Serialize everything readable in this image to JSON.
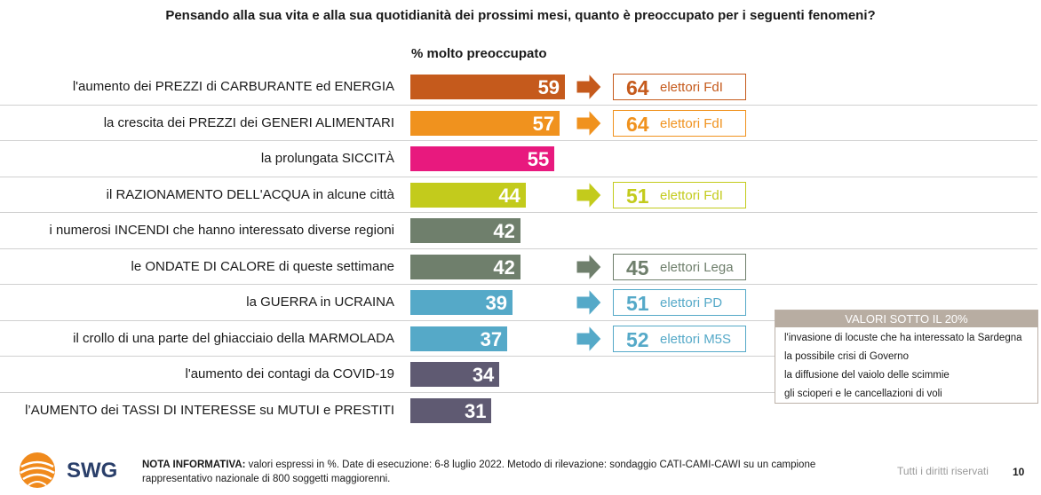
{
  "title": "Pensando alla sua vita e alla sua quotidianità dei prossimi mesi, quanto è preoccupato per i seguenti fenomeni?",
  "subtitle": "% molto preoccupato",
  "chart_data": {
    "type": "bar",
    "orientation": "horizontal",
    "categories": [
      "l'aumento dei PREZZI di CARBURANTE ed ENERGIA",
      "la crescita dei PREZZI dei GENERI ALIMENTARI",
      "la prolungata SICCITÀ",
      "il RAZIONAMENTO DELL'ACQUA in alcune città",
      "i numerosi INCENDI che hanno interessato diverse regioni",
      "le ONDATE DI CALORE di queste settimane",
      "la GUERRA in UCRAINA",
      "il crollo di una parte del ghiacciaio della MARMOLADA",
      "l'aumento dei contagi da COVID-19",
      "l’AUMENTO dei TASSI DI INTERESSE su MUTUI e PRESTITI"
    ],
    "values": [
      59,
      57,
      55,
      44,
      42,
      42,
      39,
      37,
      34,
      31
    ],
    "colors": [
      "#c55a1c",
      "#f0921e",
      "#e8197e",
      "#c3cb1c",
      "#6f7f6c",
      "#6f7f6c",
      "#55a9c8",
      "#55a9c8",
      "#5f5a72",
      "#5f5a72"
    ],
    "callouts": [
      {
        "index": 0,
        "value": 64,
        "label": "elettori FdI",
        "color": "#c55a1c"
      },
      {
        "index": 1,
        "value": 64,
        "label": "elettori FdI",
        "color": "#f0921e"
      },
      {
        "index": 3,
        "value": 51,
        "label": "elettori FdI",
        "color": "#c3cb1c"
      },
      {
        "index": 5,
        "value": 45,
        "label": "elettori Lega",
        "color": "#6f7f6c"
      },
      {
        "index": 6,
        "value": 51,
        "label": "elettori PD",
        "color": "#55a9c8"
      },
      {
        "index": 7,
        "value": 52,
        "label": "elettori M5S",
        "color": "#55a9c8"
      }
    ],
    "xlim": [
      0,
      100
    ]
  },
  "below20": {
    "header": "VALORI SOTTO IL 20%",
    "items": [
      "l'invasione di locuste che ha interessato la Sardegna",
      "la possibile crisi di Governo",
      "la diffusione del vaiolo delle scimmie",
      "gli scioperi e le cancellazioni di voli"
    ]
  },
  "footer": {
    "logo_text": "SWG",
    "note_label": "NOTA INFORMATIVA:",
    "note_text": " valori espressi in %. Date di esecuzione: 6-8 luglio 2022. Metodo di rilevazione: sondaggio CATI-CAMI-CAWI su un campione rappresentativo nazionale di 800 soggetti maggiorenni.",
    "rights": "Tutti i diritti riservati",
    "page": "10"
  }
}
